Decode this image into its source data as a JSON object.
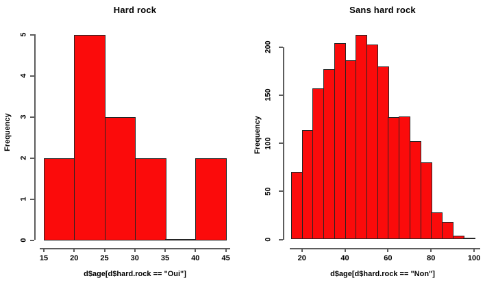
{
  "figure": {
    "background": "#ffffff",
    "text_color": "#000000",
    "axis_color": "#5c5c5c",
    "bar_border_color": "#242424",
    "bar_fill_color": "#fb0b0b"
  },
  "chart_data": [
    {
      "type": "bar",
      "subtype": "histogram",
      "title": "Hard rock",
      "xlabel": "d$age[d$hard.rock == \"Oui\"]",
      "ylabel": "Frequency",
      "bin_edges": [
        15,
        20,
        25,
        30,
        35,
        40,
        45
      ],
      "values": [
        2,
        5,
        3,
        2,
        0,
        2
      ],
      "x_ticks": [
        15,
        20,
        25,
        30,
        35,
        40,
        45
      ],
      "y_ticks": [
        0,
        1,
        2,
        3,
        4,
        5
      ],
      "xlim": [
        15,
        45
      ],
      "ylim": [
        0,
        5
      ],
      "grid": false,
      "legend": null
    },
    {
      "type": "bar",
      "subtype": "histogram",
      "title": "Sans hard rock",
      "xlabel": "d$age[d$hard.rock == \"Non\"]",
      "ylabel": "Frequency",
      "bin_edges": [
        15,
        20,
        25,
        30,
        35,
        40,
        45,
        50,
        55,
        60,
        65,
        70,
        75,
        80,
        85,
        90,
        95,
        100
      ],
      "values": [
        70,
        114,
        157,
        177,
        204,
        186,
        213,
        203,
        180,
        127,
        128,
        102,
        80,
        28,
        18,
        4,
        2
      ],
      "x_ticks": [
        20,
        40,
        60,
        80,
        100
      ],
      "y_ticks": [
        0,
        50,
        100,
        150,
        200
      ],
      "xlim": [
        15,
        100
      ],
      "ylim": [
        0,
        200
      ],
      "grid": false,
      "legend": null
    }
  ]
}
